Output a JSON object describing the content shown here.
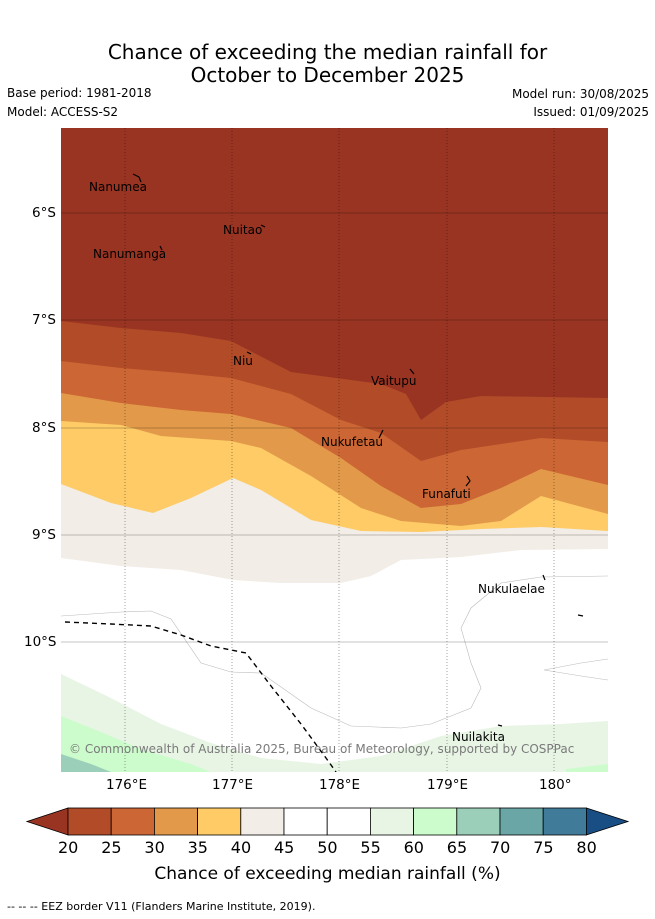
{
  "title": {
    "line1": "Chance of exceeding the median rainfall for",
    "line2": "October to December 2025"
  },
  "meta": {
    "base_period": "Base period: 1981-2018",
    "model": "Model: ACCESS-S2",
    "model_run": "Model run: 30/08/2025",
    "issued": "Issued: 01/09/2025"
  },
  "map": {
    "lat_labels": [
      "6°S",
      "7°S",
      "8°S",
      "9°S",
      "10°S"
    ],
    "lon_labels": [
      "176°E",
      "177°E",
      "178°E",
      "179°E",
      "180°"
    ],
    "places": {
      "nanumea": "Nanumea",
      "nuitao": "Nuitao",
      "nanumanga": "Nanumanga",
      "niu": "Niu",
      "vaitupu": "Vaitupu",
      "nukufetau": "Nukufetau",
      "funafuti": "Funafuti",
      "nukulaelae": "Nukulaelae",
      "nuilakita": "Nuilakita"
    },
    "copyright": "© Commonwealth of Australia 2025, Bureau of Meteorology, supported by COSPPac"
  },
  "colorbar": {
    "labels": [
      "20",
      "25",
      "30",
      "35",
      "40",
      "45",
      "50",
      "55",
      "60",
      "65",
      "70",
      "75",
      "80"
    ],
    "colors": [
      "#993422",
      "#b24b28",
      "#cc6634",
      "#e29a4a",
      "#fecb66",
      "#f2ede6",
      "#ffffff",
      "#ffffff",
      "#e8f5e5",
      "#ccfccc",
      "#9ccfb9",
      "#6ba6a6",
      "#417b9a",
      "#184e84"
    ],
    "title": "Chance of exceeding median rainfall (%)"
  },
  "footnote": "-- -- -- EEZ border V11 (Flanders Marine Institute, 2019)."
}
